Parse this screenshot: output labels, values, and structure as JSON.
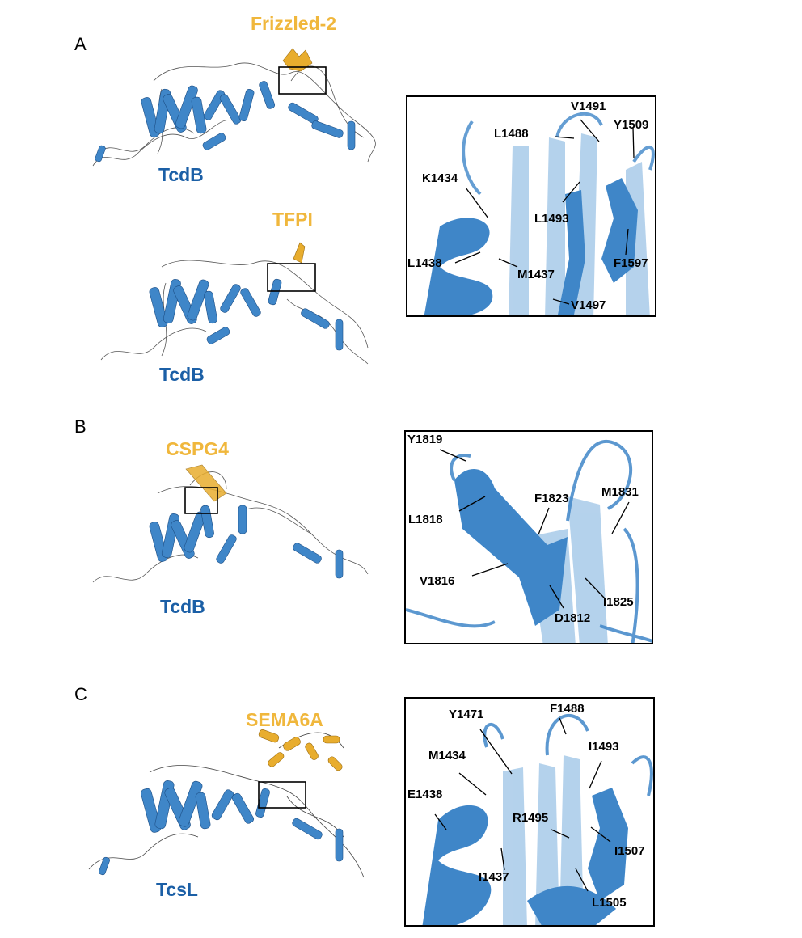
{
  "panels": {
    "A": {
      "letter": "A",
      "top_structure": {
        "toxin_label": "TcdB",
        "receptor_label": "Frizzled-2"
      },
      "bottom_structure": {
        "toxin_label": "TcdB",
        "receptor_label": "TFPI"
      },
      "residues": [
        "V1491",
        "L1488",
        "Y1509",
        "K1434",
        "L1493",
        "L1438",
        "M1437",
        "F1597",
        "V1497"
      ]
    },
    "B": {
      "letter": "B",
      "structure": {
        "toxin_label": "TcdB",
        "receptor_label": "CSPG4"
      },
      "residues": [
        "Y1819",
        "F1823",
        "M1831",
        "L1818",
        "V1816",
        "I1825",
        "D1812"
      ]
    },
    "C": {
      "letter": "C",
      "structure": {
        "toxin_label": "TcsL",
        "receptor_label": "SEMA6A"
      },
      "residues": [
        "Y1471",
        "F1488",
        "I1493",
        "M1434",
        "E1438",
        "R1495",
        "I1507",
        "I1437",
        "L1505"
      ]
    }
  },
  "colors": {
    "toxin": "#1b5fa6",
    "receptor": "#f0b73c",
    "ribbon": "#3f86c8",
    "ribbon_light": "#9cc3e6"
  }
}
